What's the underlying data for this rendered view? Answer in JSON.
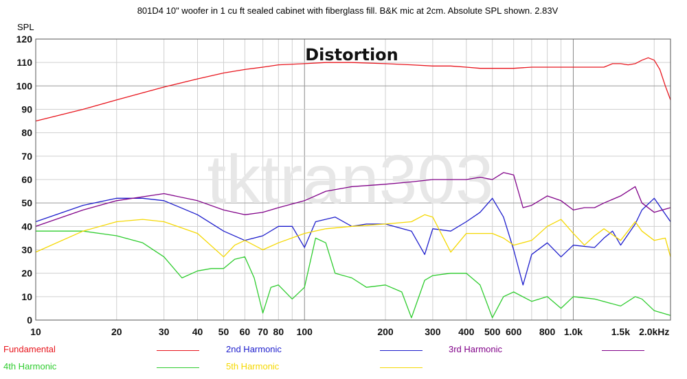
{
  "chart_data": {
    "type": "line",
    "title": "801D4 10\" woofer in 1 cu ft sealed cabinet with fiberglass fill. B&K mic at 2cm. Absolute SPL shown. 2.83V",
    "overlay_title": "Distortion",
    "watermark": "tktran303",
    "ylabel": "SPL",
    "xlabel": "",
    "x_scale": "log",
    "xlim": [
      10,
      2300
    ],
    "ylim": [
      0,
      120
    ],
    "grid": true,
    "legend_position": "bottom",
    "x_ticks": [
      {
        "value": 10,
        "label": "10"
      },
      {
        "value": 20,
        "label": "20"
      },
      {
        "value": 30,
        "label": "30"
      },
      {
        "value": 40,
        "label": "40"
      },
      {
        "value": 50,
        "label": "50"
      },
      {
        "value": 60,
        "label": "60"
      },
      {
        "value": 70,
        "label": "70"
      },
      {
        "value": 80,
        "label": "80"
      },
      {
        "value": 100,
        "label": "100"
      },
      {
        "value": 200,
        "label": "200"
      },
      {
        "value": 300,
        "label": "300"
      },
      {
        "value": 400,
        "label": "400"
      },
      {
        "value": 500,
        "label": "500"
      },
      {
        "value": 600,
        "label": "600"
      },
      {
        "value": 800,
        "label": "800"
      },
      {
        "value": 1000,
        "label": "1.0k"
      },
      {
        "value": 1500,
        "label": "1.5k"
      },
      {
        "value": 2000,
        "label": "2.0kHz"
      }
    ],
    "y_ticks": [
      0,
      10,
      20,
      30,
      40,
      50,
      60,
      70,
      80,
      90,
      100,
      110,
      120
    ],
    "series": [
      {
        "name": "Fundamental",
        "color": "#e8141c",
        "x": [
          10,
          15,
          20,
          30,
          40,
          50,
          60,
          70,
          80,
          100,
          120,
          150,
          200,
          250,
          300,
          350,
          400,
          450,
          500,
          600,
          700,
          800,
          900,
          1000,
          1100,
          1200,
          1300,
          1400,
          1500,
          1600,
          1700,
          1800,
          1900,
          2000,
          2100,
          2200,
          2300
        ],
        "y": [
          85,
          90,
          94,
          99.5,
          103,
          105.5,
          107,
          108,
          109,
          109.5,
          110,
          110,
          109.5,
          109,
          108.5,
          108.5,
          108,
          107.5,
          107.5,
          107.5,
          108,
          108,
          108,
          108,
          108,
          108,
          108,
          109.5,
          109.5,
          109,
          109.5,
          111,
          112,
          111,
          107,
          100,
          94
        ]
      },
      {
        "name": "2nd Harmonic",
        "color": "#1c1ccc",
        "x": [
          10,
          15,
          20,
          25,
          30,
          40,
          50,
          60,
          70,
          80,
          90,
          100,
          110,
          130,
          150,
          170,
          200,
          250,
          280,
          300,
          350,
          400,
          450,
          500,
          550,
          600,
          650,
          700,
          800,
          900,
          1000,
          1200,
          1300,
          1400,
          1500,
          1700,
          1800,
          2000,
          2300
        ],
        "y": [
          42,
          49,
          52,
          52,
          51,
          45,
          38,
          34,
          36,
          40,
          40,
          31,
          42,
          44,
          40,
          41,
          41,
          38,
          28,
          39,
          38,
          42,
          46,
          52,
          44,
          30,
          15,
          28,
          33,
          27,
          32,
          31,
          35,
          38,
          32,
          41,
          47,
          52,
          42
        ]
      },
      {
        "name": "3rd Harmonic",
        "color": "#800088",
        "x": [
          10,
          15,
          20,
          30,
          40,
          50,
          60,
          70,
          80,
          100,
          120,
          150,
          200,
          250,
          300,
          400,
          450,
          500,
          550,
          600,
          650,
          700,
          800,
          900,
          1000,
          1100,
          1200,
          1300,
          1500,
          1700,
          1800,
          2000,
          2300
        ],
        "y": [
          40,
          47,
          51,
          54,
          51,
          47,
          45,
          46,
          48,
          51,
          55,
          57,
          58,
          59,
          60,
          60,
          61,
          60,
          63,
          62,
          48,
          49,
          53,
          51,
          47,
          48,
          48,
          50,
          53,
          57,
          50,
          46,
          48
        ]
      },
      {
        "name": "4th Harmonic",
        "color": "#2ecc2e",
        "x": [
          10,
          15,
          20,
          25,
          30,
          35,
          40,
          45,
          50,
          55,
          60,
          65,
          70,
          75,
          80,
          90,
          100,
          110,
          120,
          130,
          150,
          170,
          200,
          230,
          250,
          280,
          300,
          350,
          400,
          450,
          500,
          550,
          600,
          700,
          800,
          900,
          1000,
          1200,
          1500,
          1700,
          1800,
          2000,
          2300
        ],
        "y": [
          38,
          38,
          36,
          33,
          27,
          18,
          21,
          22,
          22,
          26,
          27,
          18,
          3,
          14,
          15,
          9,
          14,
          35,
          33,
          20,
          18,
          14,
          15,
          12,
          1,
          17,
          19,
          20,
          20,
          15,
          1,
          10,
          12,
          8,
          10,
          5,
          10,
          9,
          6,
          10,
          9,
          4,
          2
        ]
      },
      {
        "name": "5th Harmonic",
        "color": "#f5d800",
        "x": [
          10,
          15,
          20,
          25,
          30,
          40,
          50,
          55,
          60,
          70,
          80,
          100,
          120,
          150,
          200,
          250,
          280,
          300,
          350,
          400,
          450,
          500,
          550,
          600,
          700,
          800,
          900,
          1000,
          1100,
          1200,
          1300,
          1500,
          1700,
          1800,
          2000,
          2200,
          2300
        ],
        "y": [
          29,
          38,
          42,
          43,
          42,
          37,
          27,
          32,
          34,
          30,
          33,
          37,
          39,
          40,
          41,
          42,
          45,
          44,
          29,
          37,
          37,
          37,
          35,
          32,
          34,
          40,
          43,
          37,
          32,
          36,
          39,
          34,
          42,
          38,
          34,
          35,
          27
        ]
      }
    ]
  }
}
